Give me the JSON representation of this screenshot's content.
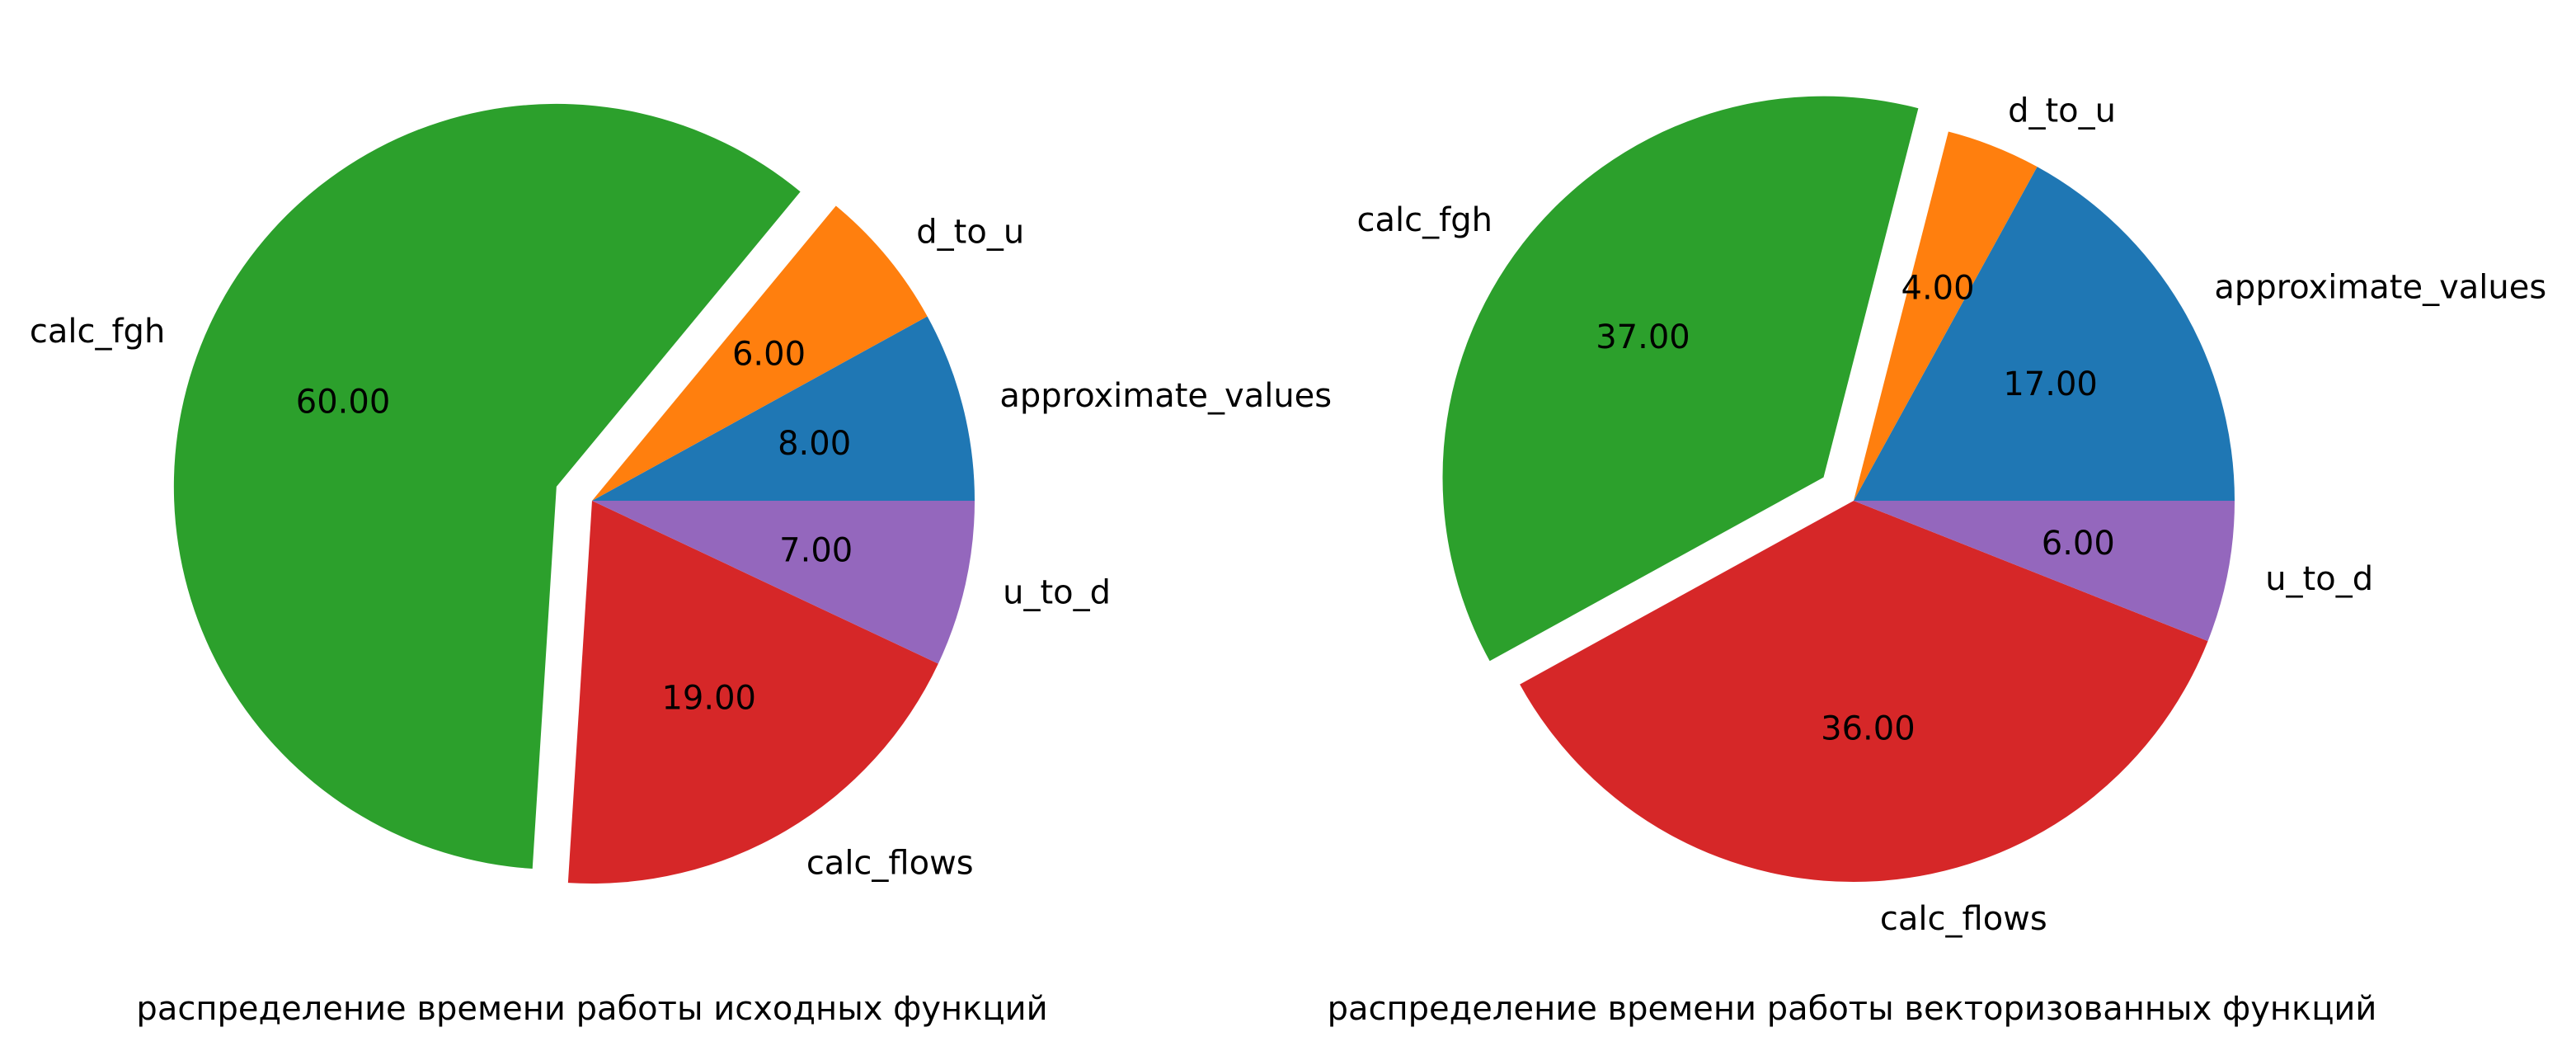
{
  "chart_data": [
    {
      "type": "pie",
      "caption": "распределение времени работы исходных функций",
      "start_angle": 0,
      "direction": "counterclockwise",
      "slices": [
        {
          "label": "approximate_values",
          "value": 8.0,
          "pct_text": "8.00",
          "color": "#1f77b4",
          "exploded": false
        },
        {
          "label": "d_to_u",
          "value": 6.0,
          "pct_text": "6.00",
          "color": "#ff7f0e",
          "exploded": false
        },
        {
          "label": "calc_fgh",
          "value": 60.0,
          "pct_text": "60.00",
          "color": "#2ca02c",
          "exploded": true
        },
        {
          "label": "calc_flows",
          "value": 19.0,
          "pct_text": "19.00",
          "color": "#d62728",
          "exploded": false
        },
        {
          "label": "u_to_d",
          "value": 7.0,
          "pct_text": "7.00",
          "color": "#9467bd",
          "exploded": false
        }
      ]
    },
    {
      "type": "pie",
      "caption": "распределение времени работы векторизованных функций",
      "start_angle": 0,
      "direction": "counterclockwise",
      "slices": [
        {
          "label": "approximate_values",
          "value": 17.0,
          "pct_text": "17.00",
          "color": "#1f77b4",
          "exploded": false
        },
        {
          "label": "d_to_u",
          "value": 4.0,
          "pct_text": "4.00",
          "color": "#ff7f0e",
          "exploded": false
        },
        {
          "label": "calc_fgh",
          "value": 37.0,
          "pct_text": "37.00",
          "color": "#2ca02c",
          "exploded": true
        },
        {
          "label": "calc_flows",
          "value": 36.0,
          "pct_text": "36.00",
          "color": "#d62728",
          "exploded": false
        },
        {
          "label": "u_to_d",
          "value": 6.0,
          "pct_text": "6.00",
          "color": "#9467bd",
          "exploded": false
        }
      ]
    }
  ]
}
